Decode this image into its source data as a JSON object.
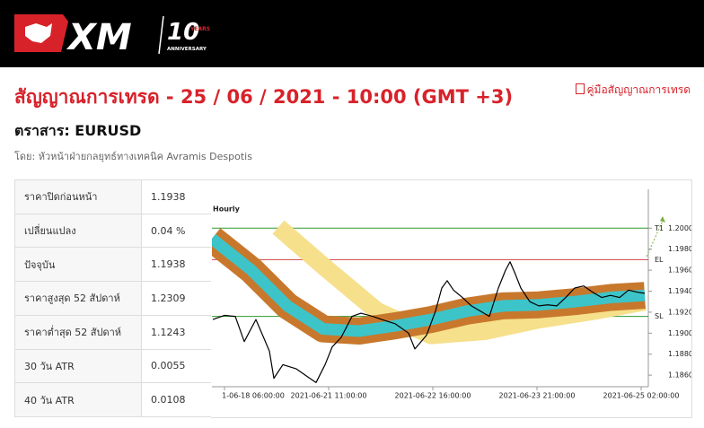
{
  "header": {
    "logo": "XM",
    "logo_number": "10",
    "logo_years": "YEARS",
    "logo_anniversary": "ANNIVERSARY"
  },
  "title": "สัญญาณการเทรด - 25 / 06 / 2021 - 10:00 (GMT +3)",
  "pdf_link": "คู่มือสัญญาณการเทรด",
  "instrument": "ตราสาร: EURUSD",
  "author": "โดย: หัวหน้าฝ่ายกลยุทธ์ทางเทคนิค Avramis Despotis",
  "table": {
    "rows": [
      [
        "ราคาปิดก่อนหน้า",
        "1.1938"
      ],
      [
        "เปลี่ยนแปลง",
        "0.04 %"
      ],
      [
        "ปัจจุบัน",
        "1.1938"
      ],
      [
        "ราคาสูงสุด 52 สัปดาห์",
        "1.2309"
      ],
      [
        "ราคาต่ำสุด 52 สัปดาห์",
        "1.1243"
      ],
      [
        "30 วัน ATR",
        "0.0055"
      ],
      [
        "40 วัน ATR",
        "0.0108"
      ]
    ]
  },
  "chart_data": {
    "type": "line",
    "title": "Hourly",
    "xlim": [
      -3.5,
      118
    ],
    "ylim": [
      1.1849,
      1.2037
    ],
    "xticks": [
      {
        "value": 0,
        "label": "1-06-18 06:00:00"
      },
      {
        "value": 29,
        "label": "2021-06-21 11:00:00"
      },
      {
        "value": 58,
        "label": "2021-06-22 16:00:00"
      },
      {
        "value": 87,
        "label": "2021-06-23 21:00:00"
      },
      {
        "value": 116,
        "label": "2021-06-25 02:00:00"
      }
    ],
    "yticks": [
      {
        "value": 1.2,
        "label": "1.2000"
      },
      {
        "value": 1.198,
        "label": "1.1980"
      },
      {
        "value": 1.196,
        "label": "1.1960"
      },
      {
        "value": 1.194,
        "label": "1.1940"
      },
      {
        "value": 1.192,
        "label": "1.1920"
      },
      {
        "value": 1.19,
        "label": "1.1900"
      },
      {
        "value": 1.188,
        "label": "1.1880"
      },
      {
        "value": 1.186,
        "label": "1.1860"
      }
    ],
    "levels": [
      {
        "label": "T1",
        "value": 1.2,
        "color": "#2e9a2e"
      },
      {
        "label": "EL",
        "value": 1.197,
        "color": "#d04040"
      },
      {
        "label": "SL",
        "value": 1.1916,
        "color": "#2e9a2e"
      }
    ],
    "series": [
      {
        "color": "#f6e08c",
        "x": [
          15,
          27.5,
          42.5,
          57.5,
          72.5,
          87.5,
          102.5,
          117
        ],
        "values": [
          1.2001,
          1.1964,
          1.1921,
          1.1898,
          1.1902,
          1.1913,
          1.1921,
          1.193
        ]
      },
      {
        "color": "#c8782c",
        "x": [
          -3.5,
          7.5,
          17.5,
          27.5,
          37.5,
          47.5,
          57.5,
          67.5,
          77.5,
          87.5,
          97.5,
          107.5,
          117
        ],
        "values": [
          1.199,
          1.196,
          1.1926,
          1.1904,
          1.1902,
          1.1907,
          1.1913,
          1.1921,
          1.1926,
          1.1927,
          1.193,
          1.1934,
          1.1936
        ]
      },
      {
        "color": "#000000",
        "x": [
          -3.25,
          0,
          3,
          5.5,
          8.75,
          12.5,
          13.75,
          16.25,
          20,
          23.75,
          25.5,
          28,
          30,
          32.5,
          35.5,
          38,
          41.25,
          43.75,
          47.5,
          51.25,
          53,
          56.25,
          58.75,
          60.5,
          62,
          63.75,
          66.25,
          68.75,
          71.25,
          73.75,
          76.25,
          78.25,
          79.5,
          81,
          82.5,
          85,
          87.5,
          90,
          92.5,
          95,
          97.5,
          100,
          102.5,
          105,
          107.5,
          110,
          112.5,
          115,
          117
        ],
        "values": [
          1.1913,
          1.1917,
          1.1916,
          1.1892,
          1.1913,
          1.1883,
          1.1857,
          1.187,
          1.1866,
          1.1857,
          1.1853,
          1.187,
          1.1887,
          1.1896,
          1.1916,
          1.1919,
          1.1916,
          1.1913,
          1.1909,
          1.19,
          1.1885,
          1.1898,
          1.1921,
          1.1943,
          1.195,
          1.1941,
          1.1934,
          1.1926,
          1.1921,
          1.1916,
          1.1943,
          1.196,
          1.1968,
          1.1956,
          1.1943,
          1.193,
          1.1926,
          1.1927,
          1.1926,
          1.1934,
          1.1943,
          1.1945,
          1.1939,
          1.1934,
          1.1936,
          1.1934,
          1.1941,
          1.1939,
          1.1938
        ]
      }
    ]
  }
}
